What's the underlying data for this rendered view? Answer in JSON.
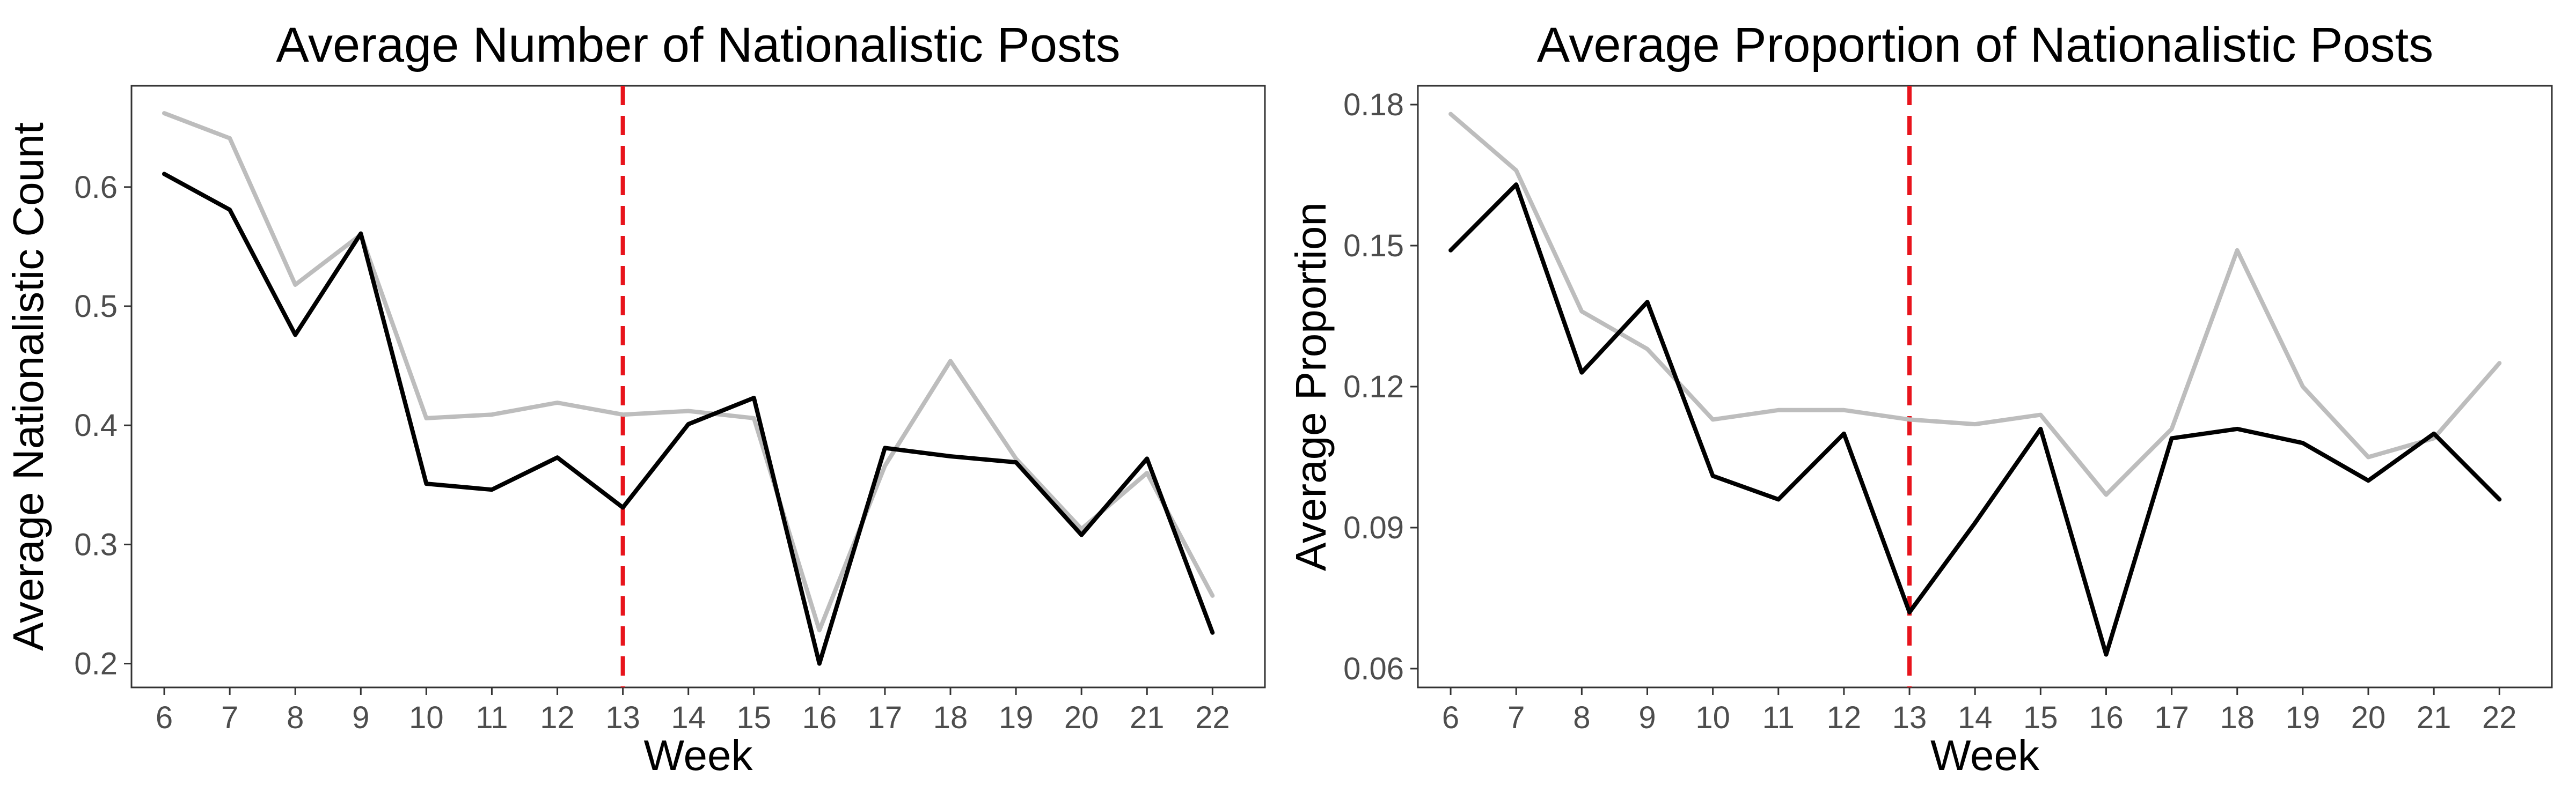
{
  "chart_data": [
    {
      "type": "line",
      "title": "Average Number of Nationalistic Posts",
      "xlabel": "Week",
      "ylabel": "Average Nationalistic Count",
      "x": [
        6,
        7,
        8,
        9,
        10,
        11,
        12,
        13,
        14,
        15,
        16,
        17,
        18,
        19,
        20,
        21,
        22
      ],
      "xlim": [
        5.5,
        22.8
      ],
      "ylim": [
        0.18,
        0.685
      ],
      "yticks": [
        0.2,
        0.3,
        0.4,
        0.5,
        0.6
      ],
      "ytick_labels": [
        "0.2",
        "0.3",
        "0.4",
        "0.5",
        "0.6"
      ],
      "series": [
        {
          "color": "#bdbdbd",
          "values": [
            0.662,
            0.641,
            0.518,
            0.56,
            0.406,
            0.409,
            0.419,
            0.409,
            0.412,
            0.406,
            0.228,
            0.366,
            0.454,
            0.372,
            0.313,
            0.36,
            0.257
          ]
        },
        {
          "color": "#000000",
          "values": [
            0.611,
            0.581,
            0.476,
            0.561,
            0.351,
            0.346,
            0.373,
            0.331,
            0.401,
            0.423,
            0.2,
            0.381,
            0.374,
            0.369,
            0.308,
            0.372,
            0.226
          ]
        }
      ],
      "vline": {
        "x": 13,
        "color": "#e8141c",
        "style": "dashed"
      },
      "grid": false,
      "legend": "none"
    },
    {
      "type": "line",
      "title": "Average Proportion of Nationalistic Posts",
      "xlabel": "Week",
      "ylabel": "Average Proportion",
      "x": [
        6,
        7,
        8,
        9,
        10,
        11,
        12,
        13,
        14,
        15,
        16,
        17,
        18,
        19,
        20,
        21,
        22
      ],
      "xlim": [
        5.5,
        22.8
      ],
      "ylim": [
        0.056,
        0.184
      ],
      "yticks": [
        0.06,
        0.09,
        0.12,
        0.15,
        0.18
      ],
      "ytick_labels": [
        "0.06",
        "0.09",
        "0.12",
        "0.15",
        "0.18"
      ],
      "series": [
        {
          "color": "#bdbdbd",
          "values": [
            0.178,
            0.166,
            0.136,
            0.128,
            0.113,
            0.115,
            0.115,
            0.113,
            0.112,
            0.114,
            0.097,
            0.111,
            0.149,
            0.12,
            0.105,
            0.109,
            0.125
          ]
        },
        {
          "color": "#000000",
          "values": [
            0.149,
            0.163,
            0.123,
            0.138,
            0.101,
            0.096,
            0.11,
            0.072,
            0.091,
            0.111,
            0.063,
            0.109,
            0.111,
            0.108,
            0.1,
            0.11,
            0.096
          ]
        }
      ],
      "vline": {
        "x": 13,
        "color": "#e8141c",
        "style": "dashed"
      },
      "grid": false,
      "legend": "none"
    }
  ]
}
